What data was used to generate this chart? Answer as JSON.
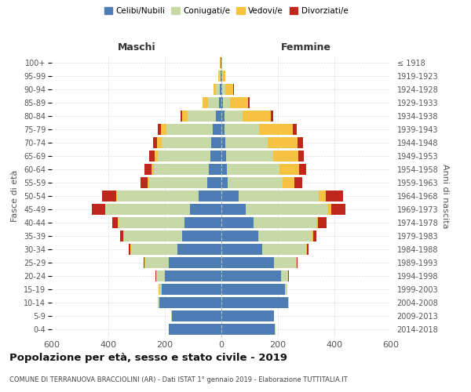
{
  "age_groups": [
    "0-4",
    "5-9",
    "10-14",
    "15-19",
    "20-24",
    "25-29",
    "30-34",
    "35-39",
    "40-44",
    "45-49",
    "50-54",
    "55-59",
    "60-64",
    "65-69",
    "70-74",
    "75-79",
    "80-84",
    "85-89",
    "90-94",
    "95-99",
    "100+"
  ],
  "birth_years": [
    "2014-2018",
    "2009-2013",
    "2004-2008",
    "1999-2003",
    "1994-1998",
    "1989-1993",
    "1984-1988",
    "1979-1983",
    "1974-1978",
    "1969-1973",
    "1964-1968",
    "1959-1963",
    "1954-1958",
    "1949-1953",
    "1944-1948",
    "1939-1943",
    "1934-1938",
    "1929-1933",
    "1924-1928",
    "1919-1923",
    "≤ 1918"
  ],
  "male_celibi": [
    185,
    175,
    220,
    210,
    200,
    185,
    155,
    140,
    130,
    110,
    80,
    50,
    45,
    40,
    35,
    30,
    20,
    8,
    5,
    2,
    2
  ],
  "male_coniugati": [
    2,
    2,
    5,
    10,
    30,
    85,
    165,
    205,
    235,
    300,
    290,
    205,
    195,
    185,
    175,
    165,
    100,
    40,
    15,
    5,
    2
  ],
  "male_vedovi": [
    0,
    0,
    0,
    1,
    1,
    1,
    1,
    1,
    2,
    2,
    3,
    5,
    8,
    12,
    18,
    20,
    20,
    18,
    8,
    3,
    1
  ],
  "male_divorziati": [
    0,
    0,
    0,
    1,
    2,
    5,
    8,
    12,
    18,
    45,
    50,
    25,
    25,
    18,
    15,
    10,
    5,
    2,
    0,
    0,
    0
  ],
  "female_celibi": [
    190,
    185,
    235,
    225,
    210,
    185,
    145,
    130,
    115,
    85,
    60,
    22,
    20,
    18,
    15,
    12,
    10,
    5,
    3,
    2,
    1
  ],
  "female_coniugati": [
    2,
    2,
    4,
    8,
    25,
    80,
    155,
    190,
    220,
    290,
    285,
    195,
    185,
    165,
    150,
    120,
    65,
    25,
    10,
    3,
    1
  ],
  "female_vedovi": [
    0,
    0,
    0,
    0,
    1,
    1,
    2,
    5,
    8,
    15,
    25,
    40,
    70,
    90,
    105,
    120,
    100,
    65,
    30,
    8,
    2
  ],
  "female_divorziati": [
    0,
    0,
    0,
    1,
    2,
    3,
    5,
    12,
    28,
    50,
    60,
    30,
    25,
    20,
    18,
    15,
    8,
    5,
    2,
    0,
    0
  ],
  "colors": {
    "celibi": "#4e7db5",
    "coniugati": "#c8d9a8",
    "vedovi": "#f5c242",
    "divorziati": "#c0271c"
  },
  "xlim": 600,
  "title": "Popolazione per età, sesso e stato civile - 2019",
  "subtitle": "COMUNE DI TERRANUOVA BRACCIOLINI (AR) - Dati ISTAT 1° gennaio 2019 - Elaborazione TUTTITALIA.IT",
  "ylabel": "Fasce di età",
  "ylabel_right": "Anni di nascita",
  "xlabel_left": "Maschi",
  "xlabel_right": "Femmine",
  "background_color": "#ffffff",
  "grid_color": "#cccccc"
}
